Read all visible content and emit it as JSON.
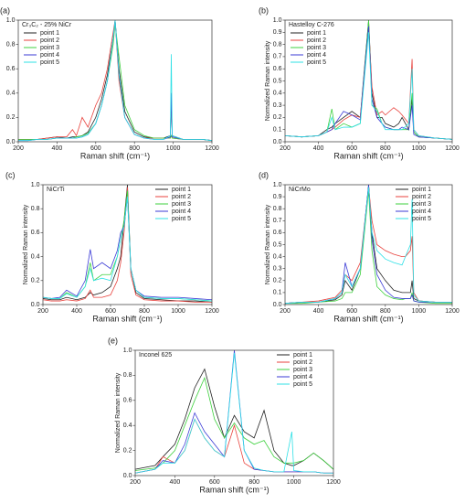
{
  "chart_data": [
    {
      "type": "line",
      "label": "(a)",
      "title": "Cr₃C₂ - 25% NiCr",
      "xlabel": "Raman shift (cm⁻¹)",
      "legend": "upper left",
      "xlim": [
        200,
        1200
      ],
      "ylim": [
        0,
        1.0
      ],
      "xticks": [
        200,
        400,
        600,
        800,
        1000,
        1200
      ],
      "yticks": [
        {
          "value": 0,
          "label": "0.0"
        },
        0.2,
        0.4,
        0.6,
        0.8,
        {
          "value": 1.0,
          "label": "1.0"
        }
      ],
      "x": [
        200,
        250,
        300,
        350,
        400,
        450,
        480,
        500,
        530,
        560,
        600,
        630,
        660,
        690,
        700,
        720,
        750,
        800,
        850,
        900,
        950,
        985,
        990,
        995,
        1050,
        1100,
        1150,
        1200
      ],
      "series": [
        {
          "name": "point 1",
          "color": "#222222",
          "values": [
            0.02,
            0.02,
            0.02,
            0.03,
            0.04,
            0.03,
            0.04,
            0.04,
            0.05,
            0.08,
            0.2,
            0.35,
            0.55,
            0.85,
            1.0,
            0.6,
            0.25,
            0.08,
            0.04,
            0.03,
            0.03,
            0.05,
            0.4,
            0.05,
            0.02,
            0.02,
            0.02,
            0.01
          ]
        },
        {
          "name": "point 2",
          "color": "#e8413c",
          "values": [
            0.02,
            0.02,
            0.02,
            0.03,
            0.04,
            0.04,
            0.1,
            0.05,
            0.2,
            0.12,
            0.3,
            0.4,
            0.6,
            0.9,
            1.0,
            0.5,
            0.2,
            0.06,
            0.03,
            0.03,
            0.03,
            0.03,
            0.05,
            0.03,
            0.02,
            0.02,
            0.02,
            0.01
          ]
        },
        {
          "name": "point 3",
          "color": "#3fd13f",
          "values": [
            0.02,
            0.02,
            0.02,
            0.02,
            0.03,
            0.03,
            0.03,
            0.04,
            0.05,
            0.07,
            0.15,
            0.3,
            0.5,
            0.8,
            0.97,
            0.7,
            0.3,
            0.1,
            0.05,
            0.03,
            0.03,
            0.03,
            0.05,
            0.03,
            0.02,
            0.02,
            0.02,
            0.01
          ]
        },
        {
          "name": "point 4",
          "color": "#3b3bd6",
          "values": [
            0.01,
            0.01,
            0.02,
            0.02,
            0.03,
            0.03,
            0.03,
            0.03,
            0.04,
            0.06,
            0.15,
            0.3,
            0.5,
            0.85,
            1.0,
            0.55,
            0.2,
            0.06,
            0.03,
            0.02,
            0.02,
            0.04,
            0.4,
            0.04,
            0.02,
            0.02,
            0.02,
            0.01
          ]
        },
        {
          "name": "point 5",
          "color": "#2fe0e6",
          "values": [
            0.01,
            0.01,
            0.02,
            0.02,
            0.03,
            0.03,
            0.03,
            0.03,
            0.04,
            0.06,
            0.15,
            0.3,
            0.5,
            0.85,
            1.0,
            0.55,
            0.2,
            0.06,
            0.03,
            0.02,
            0.02,
            0.05,
            0.72,
            0.05,
            0.02,
            0.02,
            0.02,
            0.01
          ]
        }
      ]
    },
    {
      "type": "line",
      "label": "(b)",
      "title": "Hastelloy C-276",
      "xlabel": "Raman shift (cm⁻¹)",
      "ylabel": "Normalized Raman intensity",
      "legend": "upper left",
      "xlim": [
        200,
        1200
      ],
      "ylim": [
        0,
        1.0
      ],
      "xticks": [
        200,
        400,
        600,
        800,
        1000,
        1200
      ],
      "yticks": [
        {
          "value": 0,
          "label": "0.0"
        },
        0.1,
        0.2,
        0.3,
        0.4,
        0.5,
        0.6,
        0.7,
        0.8,
        0.9,
        {
          "value": 1.0,
          "label": "1.0"
        }
      ],
      "x": [
        200,
        300,
        400,
        450,
        480,
        500,
        550,
        600,
        650,
        700,
        720,
        750,
        780,
        800,
        850,
        880,
        900,
        940,
        960,
        970,
        1000,
        1100,
        1200
      ],
      "series": [
        {
          "name": "point 1",
          "color": "#222222",
          "values": [
            0.05,
            0.04,
            0.05,
            0.1,
            0.12,
            0.15,
            0.2,
            0.25,
            0.2,
            1.0,
            0.4,
            0.2,
            0.2,
            0.15,
            0.12,
            0.15,
            0.2,
            0.1,
            0.35,
            0.08,
            0.04,
            0.03,
            0.02
          ]
        },
        {
          "name": "point 2",
          "color": "#e8413c",
          "values": [
            0.05,
            0.04,
            0.05,
            0.08,
            0.1,
            0.12,
            0.18,
            0.22,
            0.2,
            0.95,
            0.45,
            0.22,
            0.25,
            0.22,
            0.28,
            0.25,
            0.22,
            0.15,
            0.68,
            0.1,
            0.05,
            0.03,
            0.02
          ]
        },
        {
          "name": "point 3",
          "color": "#3fd13f",
          "values": [
            0.05,
            0.04,
            0.05,
            0.08,
            0.27,
            0.1,
            0.15,
            0.12,
            0.15,
            1.0,
            0.3,
            0.27,
            0.15,
            0.12,
            0.1,
            0.1,
            0.1,
            0.1,
            0.4,
            0.08,
            0.04,
            0.03,
            0.02
          ]
        },
        {
          "name": "point 4",
          "color": "#3b3bd6",
          "values": [
            0.05,
            0.04,
            0.05,
            0.08,
            0.1,
            0.15,
            0.25,
            0.22,
            0.18,
            0.95,
            0.35,
            0.2,
            0.15,
            0.12,
            0.1,
            0.1,
            0.12,
            0.1,
            0.3,
            0.06,
            0.04,
            0.03,
            0.02
          ]
        },
        {
          "name": "point 5",
          "color": "#2fe0e6",
          "values": [
            0.05,
            0.04,
            0.05,
            0.08,
            0.2,
            0.1,
            0.12,
            0.12,
            0.15,
            0.9,
            0.3,
            0.25,
            0.15,
            0.1,
            0.1,
            0.1,
            0.1,
            0.15,
            0.6,
            0.1,
            0.05,
            0.03,
            0.02
          ]
        }
      ]
    },
    {
      "type": "line",
      "label": "(c)",
      "title": "NiCrTi",
      "xlabel": "Raman shift (cm⁻¹)",
      "ylabel": "Normalized Raman intensity",
      "legend": "upper right",
      "xlim": [
        200,
        1200
      ],
      "ylim": [
        0,
        1.0
      ],
      "xticks": [
        200,
        400,
        600,
        800,
        1000,
        1200
      ],
      "yticks": [
        {
          "value": 0,
          "label": "0.0"
        },
        0.2,
        0.4,
        0.6,
        0.8,
        {
          "value": 1.0,
          "label": "1.0"
        }
      ],
      "x": [
        200,
        250,
        300,
        340,
        400,
        450,
        480,
        500,
        550,
        600,
        640,
        660,
        680,
        700,
        720,
        750,
        800,
        900,
        1000,
        1100,
        1200
      ],
      "series": [
        {
          "name": "point 1",
          "color": "#222222",
          "values": [
            0.05,
            0.04,
            0.04,
            0.06,
            0.04,
            0.06,
            0.1,
            0.08,
            0.1,
            0.15,
            0.3,
            0.4,
            0.7,
            1.0,
            0.3,
            0.1,
            0.05,
            0.04,
            0.03,
            0.03,
            0.02
          ]
        },
        {
          "name": "point 2",
          "color": "#e8413c",
          "values": [
            0.04,
            0.03,
            0.03,
            0.04,
            0.03,
            0.05,
            0.12,
            0.06,
            0.06,
            0.08,
            0.2,
            0.35,
            0.6,
            0.98,
            0.25,
            0.08,
            0.04,
            0.03,
            0.03,
            0.02,
            0.02
          ]
        },
        {
          "name": "point 3",
          "color": "#3fd13f",
          "values": [
            0.06,
            0.05,
            0.05,
            0.1,
            0.06,
            0.15,
            0.35,
            0.2,
            0.25,
            0.25,
            0.4,
            0.55,
            0.7,
            0.95,
            0.3,
            0.12,
            0.06,
            0.05,
            0.05,
            0.04,
            0.03
          ]
        },
        {
          "name": "point 4",
          "color": "#3b3bd6",
          "values": [
            0.06,
            0.05,
            0.06,
            0.12,
            0.07,
            0.2,
            0.46,
            0.3,
            0.35,
            0.3,
            0.45,
            0.6,
            0.65,
            0.9,
            0.3,
            0.12,
            0.07,
            0.06,
            0.06,
            0.05,
            0.04
          ]
        },
        {
          "name": "point 5",
          "color": "#2fe0e6",
          "values": [
            0.06,
            0.05,
            0.05,
            0.09,
            0.06,
            0.15,
            0.3,
            0.2,
            0.22,
            0.2,
            0.4,
            0.55,
            0.65,
            0.9,
            0.3,
            0.12,
            0.06,
            0.05,
            0.05,
            0.04,
            0.03
          ]
        }
      ]
    },
    {
      "type": "line",
      "label": "(d)",
      "title": "NiCrMo",
      "xlabel": "Raman shift (cm⁻¹)",
      "ylabel": "Normalized Raman intensity",
      "legend": "upper right",
      "xlim": [
        200,
        1200
      ],
      "ylim": [
        0,
        1.0
      ],
      "xticks": [
        200,
        400,
        600,
        800,
        1000,
        1200
      ],
      "yticks": [
        {
          "value": 0,
          "label": "0.0"
        },
        0.1,
        0.2,
        0.3,
        0.4,
        0.5,
        0.6,
        0.7,
        0.8,
        0.9,
        {
          "value": 1.0,
          "label": "1.0"
        }
      ],
      "x": [
        200,
        300,
        400,
        500,
        540,
        560,
        600,
        650,
        700,
        720,
        750,
        800,
        850,
        900,
        920,
        950,
        960,
        970,
        1000,
        1100,
        1200
      ],
      "series": [
        {
          "name": "point 1",
          "color": "#222222",
          "values": [
            0.01,
            0.02,
            0.02,
            0.04,
            0.08,
            0.2,
            0.12,
            0.3,
            1.0,
            0.6,
            0.3,
            0.2,
            0.12,
            0.1,
            0.1,
            0.1,
            0.2,
            0.05,
            0.03,
            0.02,
            0.02
          ]
        },
        {
          "name": "point 2",
          "color": "#e8413c",
          "values": [
            0.01,
            0.02,
            0.03,
            0.06,
            0.12,
            0.25,
            0.2,
            0.35,
            0.98,
            0.7,
            0.5,
            0.45,
            0.42,
            0.4,
            0.4,
            0.45,
            0.57,
            0.1,
            0.03,
            0.02,
            0.02
          ]
        },
        {
          "name": "point 3",
          "color": "#3fd13f",
          "values": [
            0.01,
            0.01,
            0.02,
            0.03,
            0.05,
            0.1,
            0.1,
            0.25,
            0.95,
            0.45,
            0.15,
            0.08,
            0.05,
            0.04,
            0.05,
            0.05,
            0.1,
            0.03,
            0.02,
            0.01,
            0.01
          ]
        },
        {
          "name": "point 4",
          "color": "#3b3bd6",
          "values": [
            0.01,
            0.02,
            0.02,
            0.05,
            0.1,
            0.35,
            0.15,
            0.3,
            1.0,
            0.55,
            0.25,
            0.12,
            0.06,
            0.05,
            0.05,
            0.05,
            0.08,
            0.03,
            0.02,
            0.02,
            0.02
          ]
        },
        {
          "name": "point 5",
          "color": "#2fe0e6",
          "values": [
            0.01,
            0.02,
            0.02,
            0.05,
            0.1,
            0.25,
            0.15,
            0.3,
            0.98,
            0.6,
            0.45,
            0.38,
            0.35,
            0.33,
            0.4,
            0.5,
            0.88,
            0.08,
            0.03,
            0.02,
            0.02
          ]
        }
      ]
    },
    {
      "type": "line",
      "label": "(e)",
      "title": "Inconel 625",
      "xlabel": "Raman shift (cm⁻¹)",
      "ylabel": "Normalized Raman intensity",
      "legend": "upper right",
      "xlim": [
        200,
        1200
      ],
      "ylim": [
        0,
        1.0
      ],
      "xticks": [
        200,
        400,
        600,
        800,
        1000,
        1200
      ],
      "yticks": [
        {
          "value": 0,
          "label": "0.0"
        },
        0.2,
        0.4,
        0.6,
        0.8,
        {
          "value": 1.0,
          "label": "1.0"
        }
      ],
      "x": [
        200,
        300,
        340,
        400,
        450,
        500,
        550,
        600,
        650,
        700,
        750,
        800,
        850,
        900,
        950,
        990,
        1000,
        1050,
        1100,
        1150,
        1200
      ],
      "series": [
        {
          "name": "point 1",
          "color": "#222222",
          "values": [
            0.05,
            0.08,
            0.15,
            0.25,
            0.45,
            0.7,
            0.85,
            0.55,
            0.3,
            0.48,
            0.35,
            0.3,
            0.52,
            0.2,
            0.1,
            0.08,
            0.08,
            0.12,
            0.18,
            0.12,
            0.05
          ]
        },
        {
          "name": "point 2",
          "color": "#e8413c",
          "values": [
            0.02,
            0.05,
            0.15,
            0.1,
            0.2,
            0.45,
            0.3,
            0.2,
            0.15,
            0.4,
            0.1,
            0.05,
            0.04,
            0.03,
            0.03,
            0.03,
            0.03,
            0.03,
            0.03,
            0.02,
            0.02
          ]
        },
        {
          "name": "point 3",
          "color": "#3fd13f",
          "values": [
            0.04,
            0.06,
            0.1,
            0.2,
            0.4,
            0.6,
            0.78,
            0.45,
            0.3,
            0.42,
            0.3,
            0.25,
            0.28,
            0.15,
            0.1,
            0.1,
            0.1,
            0.12,
            0.18,
            0.12,
            0.05
          ]
        },
        {
          "name": "point 4",
          "color": "#3b3bd6",
          "values": [
            0.02,
            0.05,
            0.12,
            0.1,
            0.25,
            0.5,
            0.35,
            0.25,
            0.15,
            1.0,
            0.2,
            0.05,
            0.04,
            0.03,
            0.03,
            0.03,
            0.03,
            0.03,
            0.03,
            0.02,
            0.02
          ]
        },
        {
          "name": "point 5",
          "color": "#2fe0e6",
          "values": [
            0.02,
            0.05,
            0.1,
            0.1,
            0.2,
            0.45,
            0.3,
            0.2,
            0.15,
            0.98,
            0.2,
            0.06,
            0.04,
            0.03,
            0.03,
            0.35,
            0.04,
            0.03,
            0.03,
            0.02,
            0.02
          ]
        }
      ]
    }
  ]
}
